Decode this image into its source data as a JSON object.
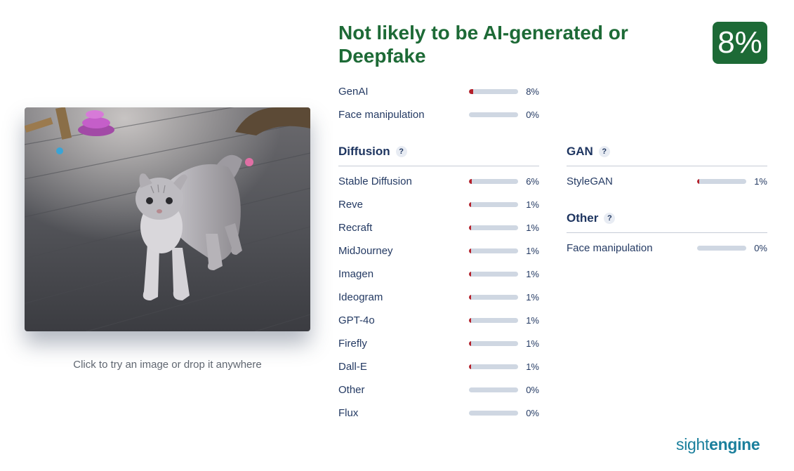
{
  "caption": "Click to try an image or drop it anywhere",
  "headline": "Not likely to be AI-generated or Deepfake",
  "score": "8%",
  "summary": [
    {
      "label": "GenAI",
      "value": "8%",
      "fraction": 0.08
    },
    {
      "label": "Face manipulation",
      "value": "0%",
      "fraction": 0
    }
  ],
  "diffusion": {
    "title": "Diffusion",
    "help": "?",
    "items": [
      {
        "label": "Stable Diffusion",
        "value": "6%",
        "fraction": 0.06
      },
      {
        "label": "Reve",
        "value": "1%",
        "fraction": 0.01
      },
      {
        "label": "Recraft",
        "value": "1%",
        "fraction": 0.01
      },
      {
        "label": "MidJourney",
        "value": "1%",
        "fraction": 0.01
      },
      {
        "label": "Imagen",
        "value": "1%",
        "fraction": 0.01
      },
      {
        "label": "Ideogram",
        "value": "1%",
        "fraction": 0.01
      },
      {
        "label": "GPT-4o",
        "value": "1%",
        "fraction": 0.01
      },
      {
        "label": "Firefly",
        "value": "1%",
        "fraction": 0.01
      },
      {
        "label": "Dall-E",
        "value": "1%",
        "fraction": 0.01
      },
      {
        "label": "Other",
        "value": "0%",
        "fraction": 0
      },
      {
        "label": "Flux",
        "value": "0%",
        "fraction": 0
      }
    ]
  },
  "gan": {
    "title": "GAN",
    "help": "?",
    "items": [
      {
        "label": "StyleGAN",
        "value": "1%",
        "fraction": 0.01
      }
    ]
  },
  "other": {
    "title": "Other",
    "help": "?",
    "items": [
      {
        "label": "Face manipulation",
        "value": "0%",
        "fraction": 0
      }
    ]
  },
  "brand": {
    "part1": "sight",
    "part2": "engine"
  },
  "colors": {
    "accent": "#1d6a36",
    "bar_fill": "#b5202a",
    "bar_track": "#cfd7e2",
    "brand": "#1a7f9c"
  }
}
